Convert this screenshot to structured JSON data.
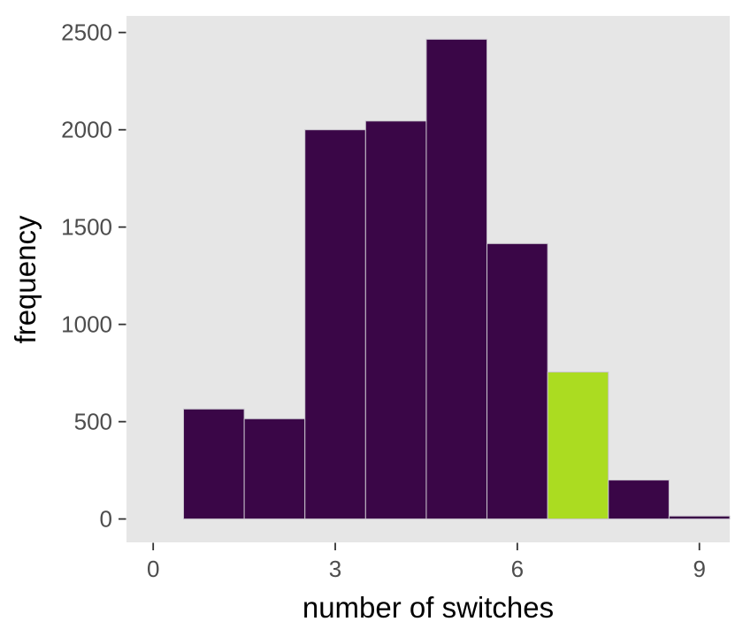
{
  "figure": {
    "xlabel": "number of switches",
    "ylabel": "frequency"
  },
  "chart_data": {
    "type": "bar",
    "subtype": "histogram",
    "title": "",
    "xlabel": "number of switches",
    "ylabel": "frequency",
    "bin_centers": [
      1,
      2,
      3,
      4,
      5,
      6,
      7,
      8,
      9
    ],
    "bin_width": 1,
    "values": [
      565,
      515,
      2000,
      2045,
      2465,
      1415,
      755,
      200,
      15
    ],
    "highlighted_bin": 7,
    "x_ticks": [
      "0",
      "3",
      "6",
      "9"
    ],
    "x_tick_values": [
      0,
      3,
      6,
      9
    ],
    "y_ticks": [
      "0",
      "500",
      "1000",
      "1500",
      "2000",
      "2500"
    ],
    "y_tick_values": [
      0,
      500,
      1000,
      1500,
      2000,
      2500
    ],
    "xlim": [
      -0.44,
      9.5
    ],
    "ylim": [
      -120,
      2585
    ],
    "grid": "off",
    "legend": "none",
    "colors": {
      "bar_fill": "#3a0647",
      "highlight_fill": "#abdc21",
      "bar_border": "#c9c4ce",
      "panel_background": "#e6e6e6",
      "tick_label": "#4d4d4d",
      "axis_title": "#000000",
      "tick_mark": "#333333",
      "page_background": "#ffffff"
    }
  }
}
